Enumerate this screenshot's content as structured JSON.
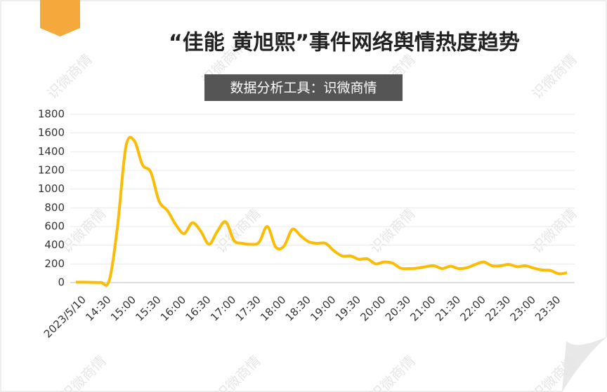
{
  "chart_data": {
    "type": "line",
    "title": "“佳能 黄旭熙”事件网络舆情热度趋势",
    "subtitle": "数据分析工具：识微商情",
    "watermark": "识微商情",
    "categories": [
      "2023/5/10",
      null,
      null,
      "14:30",
      null,
      null,
      "15:00",
      null,
      null,
      "15:30",
      null,
      null,
      "16:00",
      null,
      null,
      "16:30",
      null,
      null,
      "17:00",
      null,
      null,
      "17:30",
      null,
      null,
      "18:00",
      null,
      null,
      "18:30",
      null,
      null,
      "19:00",
      null,
      null,
      "19:30",
      null,
      null,
      "20:00",
      null,
      null,
      "20:30",
      null,
      null,
      "21:00",
      null,
      null,
      "21:30",
      null,
      null,
      "22:00",
      null,
      null,
      "22:30",
      null,
      null,
      "23:00",
      null,
      null,
      "23:30",
      null,
      null
    ],
    "series": [
      {
        "color": "#fbbc05",
        "values": [
          5,
          5,
          3,
          2,
          20,
          600,
          1450,
          1520,
          1260,
          1180,
          870,
          770,
          620,
          525,
          640,
          550,
          410,
          550,
          650,
          450,
          420,
          410,
          430,
          600,
          380,
          390,
          570,
          500,
          435,
          420,
          420,
          340,
          285,
          285,
          250,
          255,
          200,
          220,
          210,
          155,
          150,
          155,
          170,
          180,
          150,
          175,
          150,
          160,
          195,
          220,
          180,
          180,
          195,
          170,
          180,
          155,
          135,
          130,
          95,
          105
        ]
      }
    ],
    "ylim": [
      0,
      1800
    ],
    "yticks": [
      0,
      200,
      400,
      600,
      800,
      1000,
      1200,
      1400,
      1600,
      1800
    ],
    "grid": true
  }
}
